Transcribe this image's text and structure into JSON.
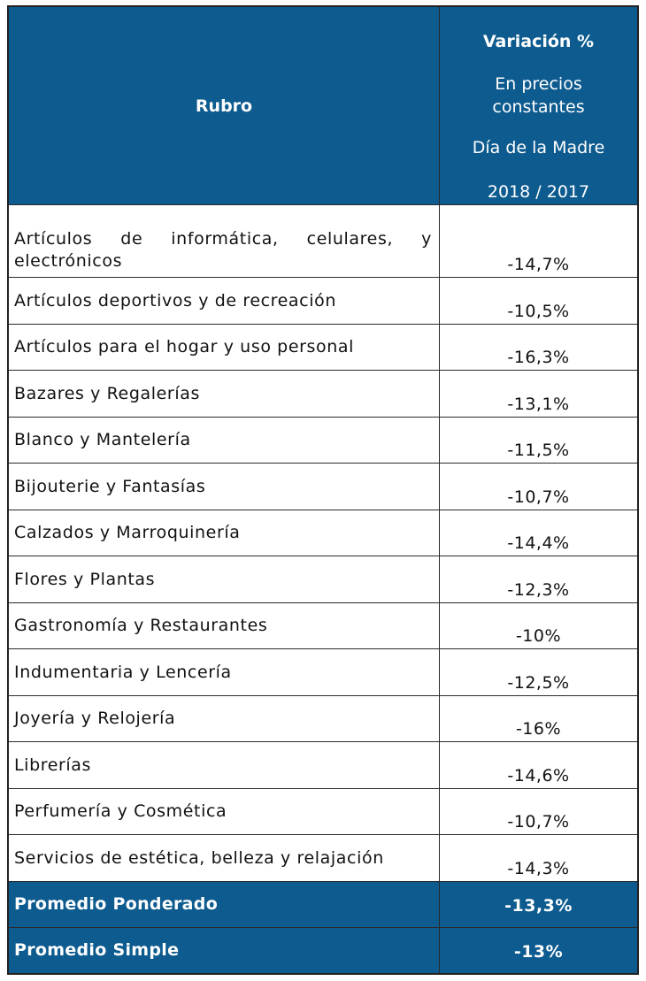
{
  "header": {
    "rubro": "Rubro",
    "variacion_title": "Variación %",
    "variacion_sub1": "En precios",
    "variacion_sub2": "constantes",
    "variacion_sub3": "Día de la Madre",
    "variacion_sub4": "2018 / 2017"
  },
  "rows": [
    {
      "rubro": "Artículos de informática, celulares, y electrónicos",
      "variacion": "-14,7%"
    },
    {
      "rubro": "Artículos deportivos y de recreación",
      "variacion": "-10,5%"
    },
    {
      "rubro": "Artículos para el hogar y uso personal",
      "variacion": "-16,3%"
    },
    {
      "rubro": "Bazares y Regalerías",
      "variacion": "-13,1%"
    },
    {
      "rubro": "Blanco y Mantelería",
      "variacion": "-11,5%"
    },
    {
      "rubro": "Bijouterie y Fantasías",
      "variacion": "-10,7%"
    },
    {
      "rubro": "Calzados y Marroquinería",
      "variacion": "-14,4%"
    },
    {
      "rubro": "Flores y Plantas",
      "variacion": "-12,3%"
    },
    {
      "rubro": "Gastronomía y Restaurantes",
      "variacion": "-10%"
    },
    {
      "rubro": "Indumentaria y Lencería",
      "variacion": "-12,5%"
    },
    {
      "rubro": "Joyería y Relojería",
      "variacion": "-16%"
    },
    {
      "rubro": "Librerías",
      "variacion": "-14,6%"
    },
    {
      "rubro": "Perfumería y Cosmética",
      "variacion": "-10,7%"
    },
    {
      "rubro": "Servicios de estética, belleza y relajación",
      "variacion": "-14,3%"
    }
  ],
  "footer": [
    {
      "label": "Promedio Ponderado",
      "value": "-13,3%"
    },
    {
      "label": "Promedio Simple",
      "value": "-13%"
    }
  ],
  "colors": {
    "header_bg": "#0d5b8f",
    "header_text": "#ffffff",
    "border": "#2a2a2a"
  }
}
